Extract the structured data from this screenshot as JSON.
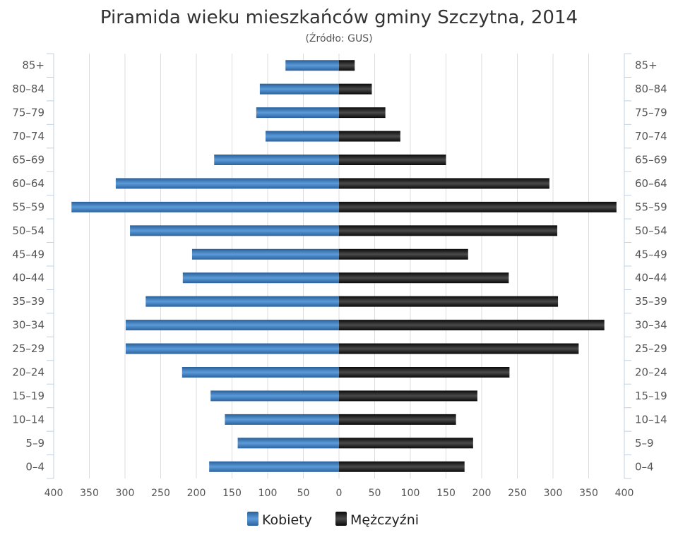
{
  "chart_data": {
    "type": "bar",
    "orientation": "horizontal-pyramid",
    "title": "Piramida wieku mieszkańców gminy Szczytna, 2014",
    "subtitle": "(Źródło: GUS)",
    "categories": [
      "0–4",
      "5–9",
      "10–14",
      "15–19",
      "20–24",
      "25–29",
      "30–34",
      "35–39",
      "40–44",
      "45–49",
      "50–54",
      "55–59",
      "60–64",
      "65–69",
      "70–74",
      "75–79",
      "80–84",
      "85+"
    ],
    "series": [
      {
        "name": "Kobiety",
        "side": "left",
        "color": "#3d7ab8",
        "values": [
          182,
          142,
          160,
          180,
          220,
          299,
          299,
          271,
          219,
          206,
          293,
          375,
          313,
          175,
          103,
          116,
          111,
          75
        ]
      },
      {
        "name": "Mężczyźni",
        "side": "right",
        "color": "#1c1c1c",
        "values": [
          176,
          188,
          164,
          194,
          239,
          336,
          372,
          307,
          238,
          181,
          306,
          389,
          295,
          150,
          86,
          65,
          46,
          22
        ]
      }
    ],
    "xlim": [
      -400,
      400
    ],
    "x_ticks": [
      "400",
      "350",
      "300",
      "250",
      "200",
      "150",
      "100",
      "50",
      "0",
      "50",
      "100",
      "150",
      "200",
      "250",
      "300",
      "350",
      "400"
    ],
    "grid": true,
    "legend_position": "bottom"
  }
}
